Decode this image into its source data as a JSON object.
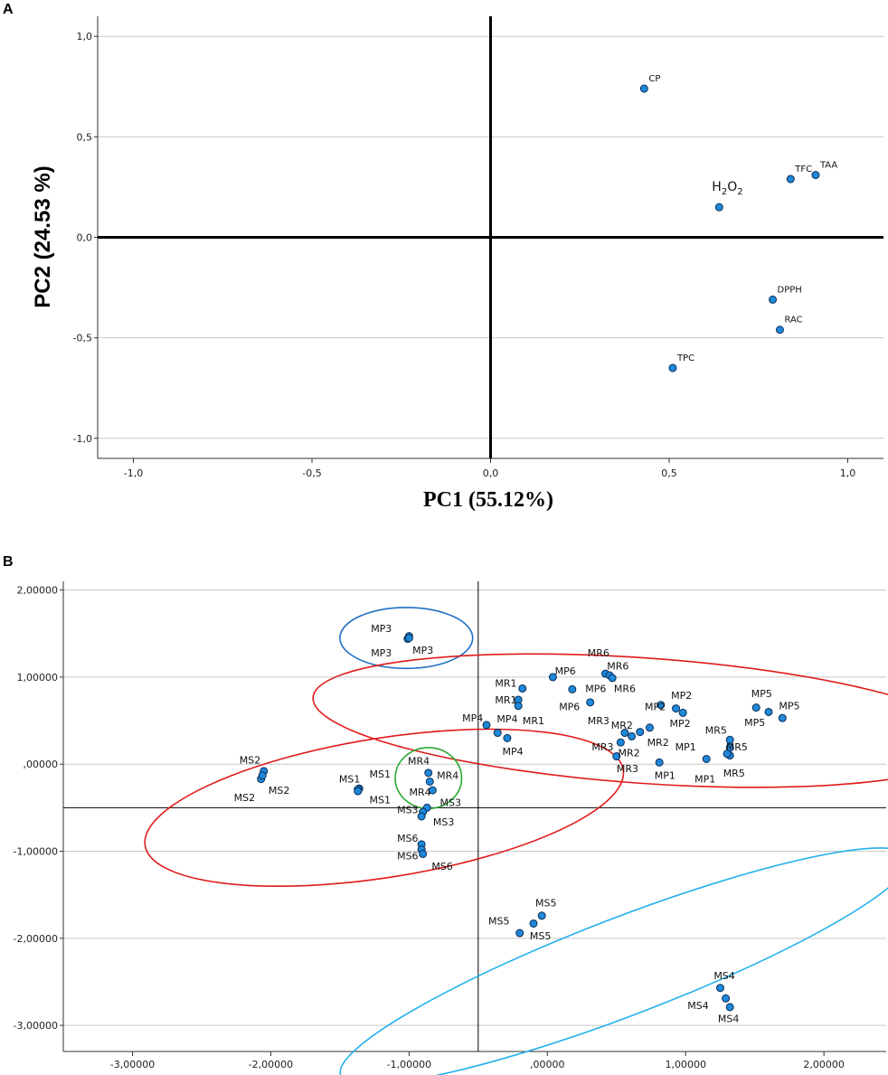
{
  "chart_data": [
    {
      "panel": "A",
      "type": "scatter",
      "title": "",
      "xlabel": "PC1 (55.12%)",
      "ylabel": "PC2 (24.53 %)",
      "xlim": [
        -1.1,
        1.1
      ],
      "ylim": [
        -1.1,
        1.1
      ],
      "xticks": [
        -1.0,
        -0.5,
        0.0,
        0.5,
        1.0
      ],
      "xtick_labels": [
        "-1,0",
        "-0,5",
        "0,0",
        "0,5",
        "1,0"
      ],
      "yticks": [
        1.0,
        0.5,
        0.0,
        -0.5,
        -1.0
      ],
      "ytick_labels": [
        "1,0",
        "0,5",
        "0,0",
        "-0,5",
        "-1,0"
      ],
      "grid": "horizontal",
      "reference_lines": {
        "x": 0.0,
        "y": 0.0
      },
      "points": [
        {
          "label": "CP",
          "x": 0.43,
          "y": 0.74
        },
        {
          "label": "TFC",
          "x": 0.84,
          "y": 0.29
        },
        {
          "label": "TAA",
          "x": 0.91,
          "y": 0.31
        },
        {
          "label": "H2O2",
          "x": 0.64,
          "y": 0.15
        },
        {
          "label": "DPPH",
          "x": 0.79,
          "y": -0.31
        },
        {
          "label": "RAC",
          "x": 0.81,
          "y": -0.46
        },
        {
          "label": "TPC",
          "x": 0.51,
          "y": -0.65
        }
      ]
    },
    {
      "panel": "B",
      "type": "scatter",
      "title": "",
      "xlabel": "",
      "ylabel": "",
      "xlim": [
        -3.5,
        2.45
      ],
      "ylim": [
        -3.3,
        2.1
      ],
      "xticks": [
        -3,
        -2,
        -1,
        0,
        1,
        2
      ],
      "xtick_labels": [
        "-3,00000",
        "-2,00000",
        "-1,00000",
        ",00000",
        "1,00000",
        "2,00000"
      ],
      "yticks": [
        2,
        1,
        0,
        -1,
        -2,
        -3
      ],
      "ytick_labels": [
        "2,00000",
        "1,00000",
        ",00000",
        "-1,00000",
        "-2,00000",
        "-3,00000"
      ],
      "grid": "horizontal",
      "reference_lines": {
        "x": -0.5,
        "y": -0.5
      },
      "points": [
        {
          "x": -1.0,
          "y": 1.47
        },
        {
          "x": -1.01,
          "y": 1.44
        },
        {
          "x": -1.0,
          "y": 1.45
        },
        {
          "x": -2.05,
          "y": -0.08
        },
        {
          "x": -2.07,
          "y": -0.17
        },
        {
          "x": -2.06,
          "y": -0.13
        },
        {
          "x": -1.36,
          "y": -0.28
        },
        {
          "x": -1.37,
          "y": -0.29
        },
        {
          "x": -1.37,
          "y": -0.31
        },
        {
          "x": -0.86,
          "y": -0.1
        },
        {
          "x": -0.85,
          "y": -0.2
        },
        {
          "x": -0.83,
          "y": -0.3
        },
        {
          "x": -0.87,
          "y": -0.5
        },
        {
          "x": -0.9,
          "y": -0.55
        },
        {
          "x": -0.91,
          "y": -0.6
        },
        {
          "x": -0.91,
          "y": -0.92
        },
        {
          "x": -0.91,
          "y": -0.98
        },
        {
          "x": -0.9,
          "y": -1.03
        },
        {
          "x": -0.44,
          "y": 0.45
        },
        {
          "x": -0.36,
          "y": 0.36
        },
        {
          "x": -0.29,
          "y": 0.3
        },
        {
          "x": -0.18,
          "y": 0.87
        },
        {
          "x": -0.21,
          "y": 0.74
        },
        {
          "x": -0.21,
          "y": 0.67
        },
        {
          "x": 0.04,
          "y": 1.0
        },
        {
          "x": 0.18,
          "y": 0.86
        },
        {
          "x": 0.31,
          "y": 0.71
        },
        {
          "x": 0.42,
          "y": 1.04
        },
        {
          "x": 0.45,
          "y": 1.02
        },
        {
          "x": 0.47,
          "y": 0.99
        },
        {
          "x": 0.56,
          "y": 0.36
        },
        {
          "x": 0.53,
          "y": 0.25
        },
        {
          "x": 0.5,
          "y": 0.09
        },
        {
          "x": 0.61,
          "y": 0.32
        },
        {
          "x": 0.67,
          "y": 0.37
        },
        {
          "x": 0.74,
          "y": 0.42
        },
        {
          "x": 0.82,
          "y": 0.68
        },
        {
          "x": 0.93,
          "y": 0.64
        },
        {
          "x": 0.98,
          "y": 0.59
        },
        {
          "x": 0.81,
          "y": 0.02
        },
        {
          "x": 1.15,
          "y": 0.06
        },
        {
          "x": 1.32,
          "y": 0.1
        },
        {
          "x": 1.32,
          "y": 0.28
        },
        {
          "x": 1.32,
          "y": 0.19
        },
        {
          "x": 1.3,
          "y": 0.12
        },
        {
          "x": 1.51,
          "y": 0.65
        },
        {
          "x": 1.6,
          "y": 0.6
        },
        {
          "x": 1.7,
          "y": 0.53
        },
        {
          "x": -0.04,
          "y": -1.74
        },
        {
          "x": -0.1,
          "y": -1.83
        },
        {
          "x": -0.2,
          "y": -1.94
        },
        {
          "x": 1.25,
          "y": -2.57
        },
        {
          "x": 1.29,
          "y": -2.69
        },
        {
          "x": 1.32,
          "y": -2.79
        }
      ],
      "labels": [
        {
          "text": "MP3",
          "x": -1.2,
          "y": 1.56
        },
        {
          "text": "MP3",
          "x": -1.2,
          "y": 1.28
        },
        {
          "text": "MP3",
          "x": -0.9,
          "y": 1.31
        },
        {
          "text": "MS2",
          "x": -2.15,
          "y": 0.05
        },
        {
          "text": "MS2",
          "x": -2.19,
          "y": -0.38
        },
        {
          "text": "MS2",
          "x": -1.94,
          "y": -0.3
        },
        {
          "text": "MS1",
          "x": -1.43,
          "y": -0.17
        },
        {
          "text": "MS1",
          "x": -1.21,
          "y": -0.11
        },
        {
          "text": "MS1",
          "x": -1.21,
          "y": -0.41
        },
        {
          "text": "MR4",
          "x": -0.93,
          "y": 0.04
        },
        {
          "text": "MR4",
          "x": -0.72,
          "y": -0.13
        },
        {
          "text": "MR4",
          "x": -0.92,
          "y": -0.32
        },
        {
          "text": "MS3",
          "x": -1.01,
          "y": -0.52
        },
        {
          "text": "MS3",
          "x": -0.7,
          "y": -0.44
        },
        {
          "text": "MS3",
          "x": -0.75,
          "y": -0.66
        },
        {
          "text": "MS6",
          "x": -1.01,
          "y": -0.85
        },
        {
          "text": "MS6",
          "x": -1.01,
          "y": -1.05
        },
        {
          "text": "MS6",
          "x": -0.76,
          "y": -1.17
        },
        {
          "text": "MP4",
          "x": -0.54,
          "y": 0.53
        },
        {
          "text": "MP4",
          "x": -0.29,
          "y": 0.52
        },
        {
          "text": "MP4",
          "x": -0.25,
          "y": 0.15
        },
        {
          "text": "MR1",
          "x": -0.3,
          "y": 0.93
        },
        {
          "text": "MR1",
          "x": -0.3,
          "y": 0.74
        },
        {
          "text": "MR1",
          "x": -0.1,
          "y": 0.5
        },
        {
          "text": "MP6",
          "x": 0.13,
          "y": 1.07
        },
        {
          "text": "MP6",
          "x": 0.35,
          "y": 0.87
        },
        {
          "text": "MP6",
          "x": 0.16,
          "y": 0.66
        },
        {
          "text": "MR6",
          "x": 0.37,
          "y": 1.28
        },
        {
          "text": "MR6",
          "x": 0.51,
          "y": 1.13
        },
        {
          "text": "MR6",
          "x": 0.56,
          "y": 0.87
        },
        {
          "text": "MR3",
          "x": 0.37,
          "y": 0.5
        },
        {
          "text": "MR3",
          "x": 0.4,
          "y": 0.2
        },
        {
          "text": "MR3",
          "x": 0.58,
          "y": -0.05
        },
        {
          "text": "MR2",
          "x": 0.54,
          "y": 0.45
        },
        {
          "text": "MR2",
          "x": 0.59,
          "y": 0.13
        },
        {
          "text": "MR2",
          "x": 0.8,
          "y": 0.25
        },
        {
          "text": "MP2",
          "x": 0.78,
          "y": 0.66
        },
        {
          "text": "MP2",
          "x": 0.97,
          "y": 0.79
        },
        {
          "text": "MP2",
          "x": 0.96,
          "y": 0.47
        },
        {
          "text": "MP1",
          "x": 1.0,
          "y": 0.2
        },
        {
          "text": "MP1",
          "x": 0.85,
          "y": -0.13
        },
        {
          "text": "MP1",
          "x": 1.14,
          "y": -0.17
        },
        {
          "text": "MR5",
          "x": 1.22,
          "y": 0.39
        },
        {
          "text": "MR5",
          "x": 1.37,
          "y": 0.2
        },
        {
          "text": "MR5",
          "x": 1.35,
          "y": -0.1
        },
        {
          "text": "MP5",
          "x": 1.55,
          "y": 0.81
        },
        {
          "text": "MP5",
          "x": 1.75,
          "y": 0.67
        },
        {
          "text": "MP5",
          "x": 1.5,
          "y": 0.48
        },
        {
          "text": "MS5",
          "x": -0.01,
          "y": -1.59
        },
        {
          "text": "MS5",
          "x": -0.35,
          "y": -1.8
        },
        {
          "text": "MS5",
          "x": -0.05,
          "y": -1.97
        },
        {
          "text": "MS4",
          "x": 1.28,
          "y": -2.43
        },
        {
          "text": "MS4",
          "x": 1.09,
          "y": -2.77
        },
        {
          "text": "MS4",
          "x": 1.31,
          "y": -2.92
        }
      ],
      "group_ellipses": [
        {
          "group": "MP3",
          "color": "#1f6fc4",
          "cx": -1.02,
          "cy": 1.45,
          "rx": 0.48,
          "ry": 0.35,
          "rotate": 0
        },
        {
          "group": "MP/MR",
          "color": "#e01b1b",
          "cx": 0.7,
          "cy": 0.5,
          "rx": 2.4,
          "ry": 0.72,
          "rotate": 4
        },
        {
          "group": "MS1/MS2/MS3/MS6/MR4",
          "color": "#e01b1b",
          "cx": -1.18,
          "cy": -0.5,
          "rx": 1.75,
          "ry": 0.8,
          "rotate": -9
        },
        {
          "group": "MR4",
          "color": "#2aaa33",
          "cx": -0.86,
          "cy": -0.16,
          "rx": 0.24,
          "ry": 0.35,
          "rotate": 0
        },
        {
          "group": "MS4/MS5",
          "color": "#23b1ec",
          "cx": 0.56,
          "cy": -2.32,
          "rx": 2.2,
          "ry": 0.56,
          "rotate": -21
        }
      ]
    }
  ]
}
